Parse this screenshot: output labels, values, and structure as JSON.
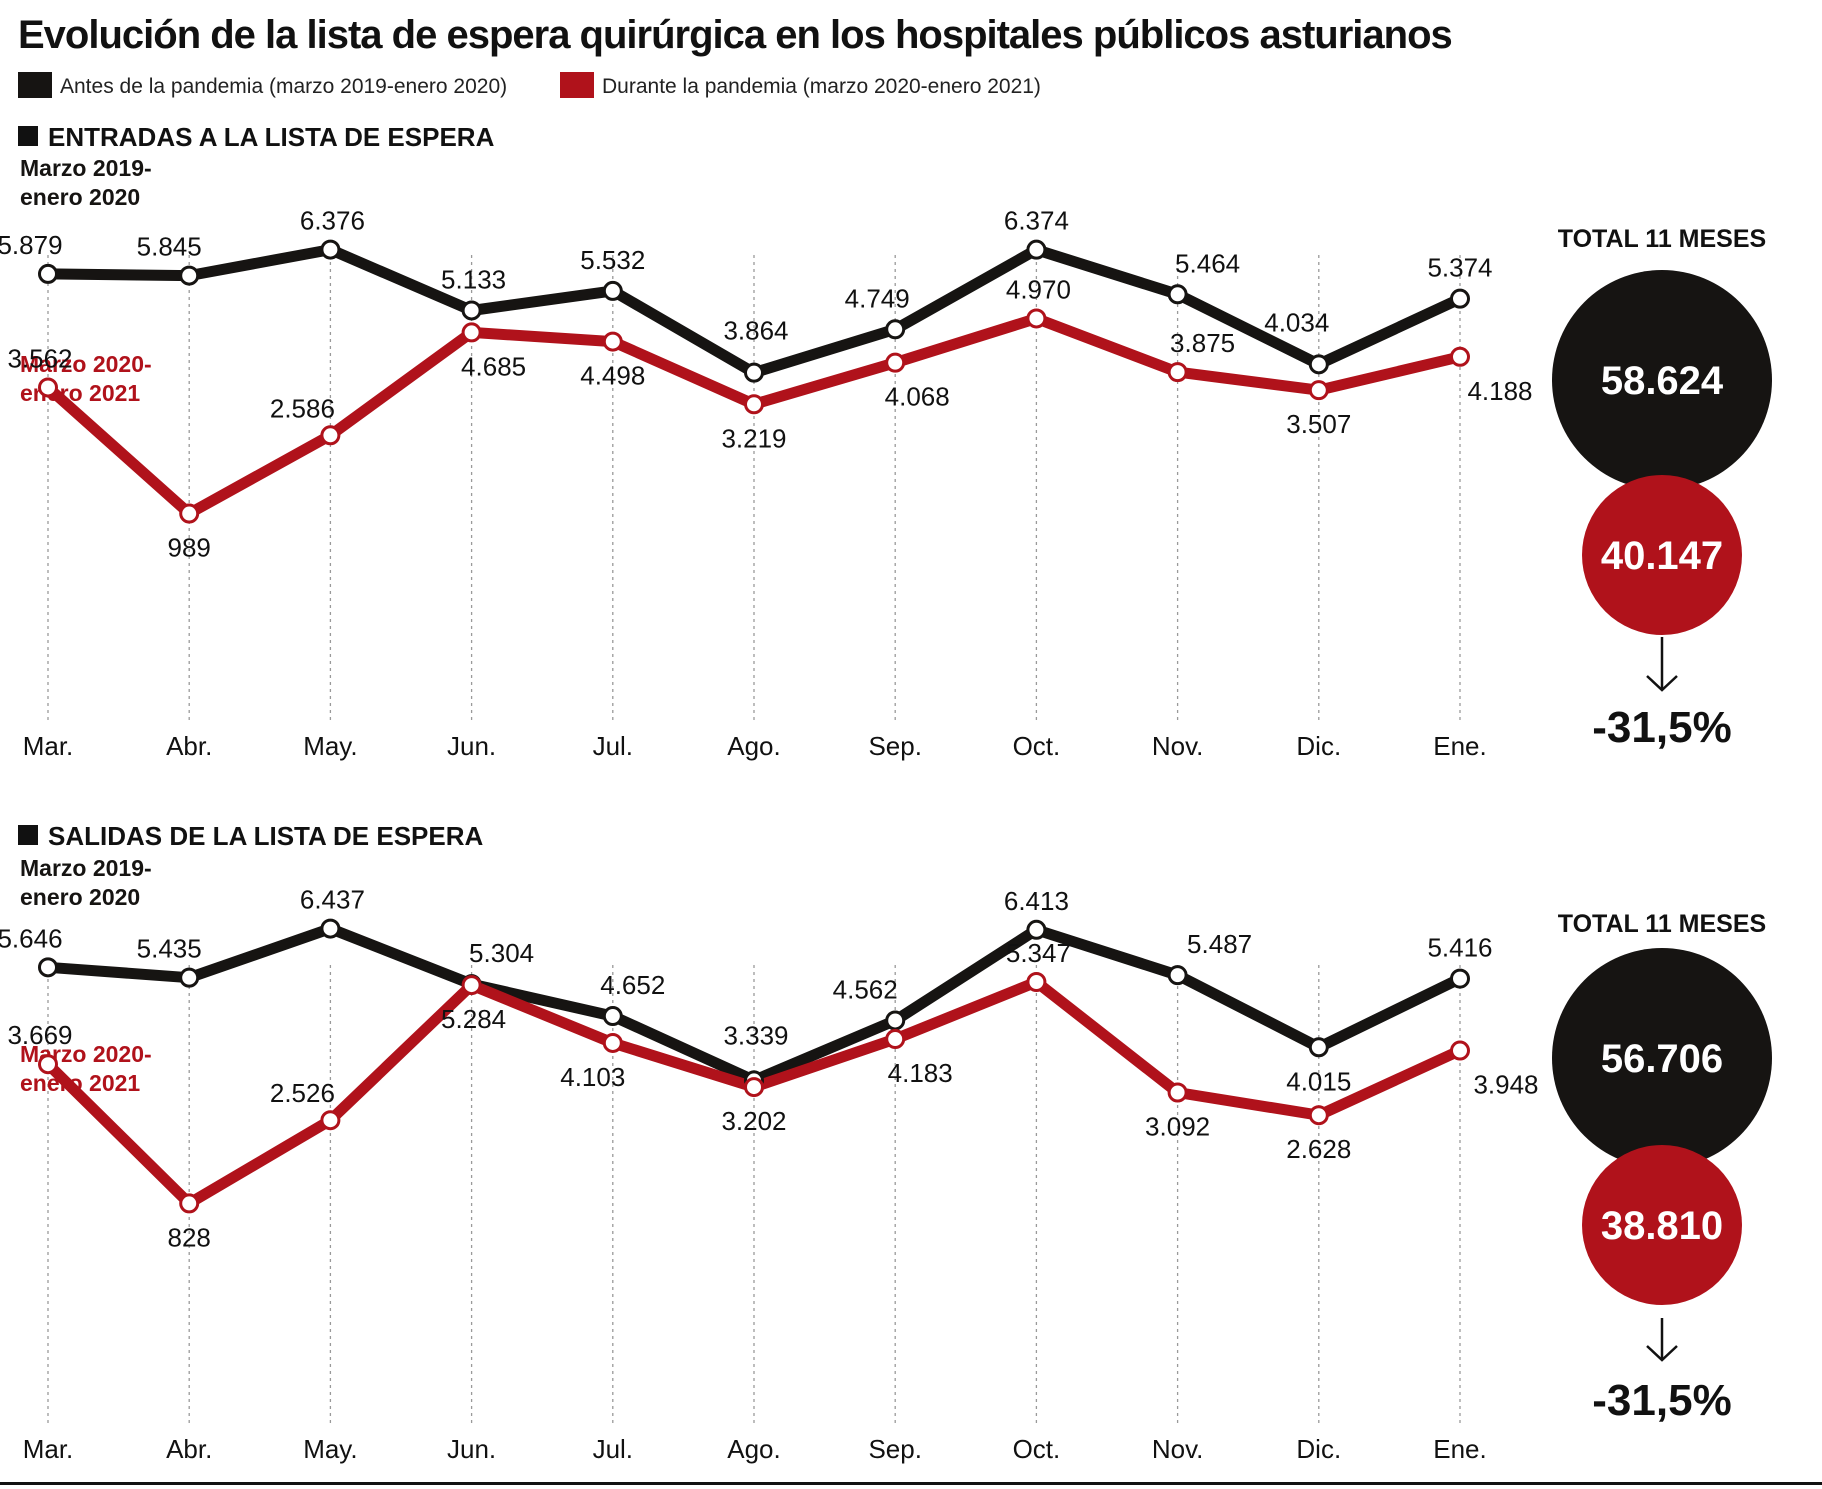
{
  "title": "Evolución de la lista de espera quirúrgica en los hospitales públicos asturianos",
  "legend": [
    {
      "label": "Antes de la pandemia (marzo 2019-enero 2020)",
      "color": "#161412"
    },
    {
      "label": "Durante la pandemia (marzo 2020-enero 2021)",
      "color": "#b0121b"
    }
  ],
  "colors": {
    "before": "#161412",
    "during": "#b0121b",
    "grid": "#9a9a9a"
  },
  "chart_data": [
    {
      "type": "line",
      "title": "ENTRADAS A LA LISTA DE ESPERA",
      "categories": [
        "Mar.",
        "Abr.",
        "May.",
        "Jun.",
        "Jul.",
        "Ago.",
        "Sep.",
        "Oct.",
        "Nov.",
        "Dic.",
        "Ene."
      ],
      "series": [
        {
          "name": "Marzo 2019-enero 2020",
          "values": [
            5879,
            5845,
            6376,
            5133,
            5532,
            3864,
            4749,
            6374,
            5464,
            4034,
            5374
          ],
          "labels": [
            "5.879",
            "5.845",
            "6.376",
            "5.133",
            "5.532",
            "3.864",
            "4.749",
            "6.374",
            "5.464",
            "4.034",
            "5.374"
          ]
        },
        {
          "name": "Marzo 2020-enero 2021",
          "values": [
            3562,
            989,
            2586,
            4685,
            4498,
            3219,
            4068,
            4970,
            3875,
            3507,
            4188
          ],
          "labels": [
            "3.562",
            "989",
            "2.586",
            "4.685",
            "4.498",
            "3.219",
            "4.068",
            "4.970",
            "3.875",
            "3.507",
            "4.188"
          ]
        }
      ],
      "total": {
        "title": "TOTAL 11 MESES",
        "before": "58.624",
        "during": "40.147",
        "change": "-31,5%"
      }
    },
    {
      "type": "line",
      "title": "SALIDAS DE LA LISTA DE ESPERA",
      "categories": [
        "Mar.",
        "Abr.",
        "May.",
        "Jun.",
        "Jul.",
        "Ago.",
        "Sep.",
        "Oct.",
        "Nov.",
        "Dic.",
        "Ene."
      ],
      "series": [
        {
          "name": "Marzo 2019-enero 2020",
          "values": [
            5646,
            5435,
            6437,
            5304,
            4652,
            3339,
            4562,
            6413,
            5487,
            4015,
            5416
          ],
          "labels": [
            "5.646",
            "5.435",
            "6.437",
            "5.304",
            "4.652",
            "3.339",
            "4.562",
            "6.413",
            "5.487",
            "4.015",
            "5.416"
          ]
        },
        {
          "name": "Marzo 2020-enero 2021",
          "values": [
            3669,
            828,
            2526,
            5284,
            4103,
            3202,
            4183,
            5347,
            3092,
            2628,
            3948
          ],
          "labels": [
            "3.669",
            "828",
            "2.526",
            "5.284",
            "4.103",
            "3.202",
            "4.183",
            "5.347",
            "3.092",
            "2.628",
            "3.948"
          ]
        }
      ],
      "total": {
        "title": "TOTAL 11 MESES",
        "before": "56.706",
        "during": "38.810",
        "change": "-31,5%"
      }
    }
  ]
}
